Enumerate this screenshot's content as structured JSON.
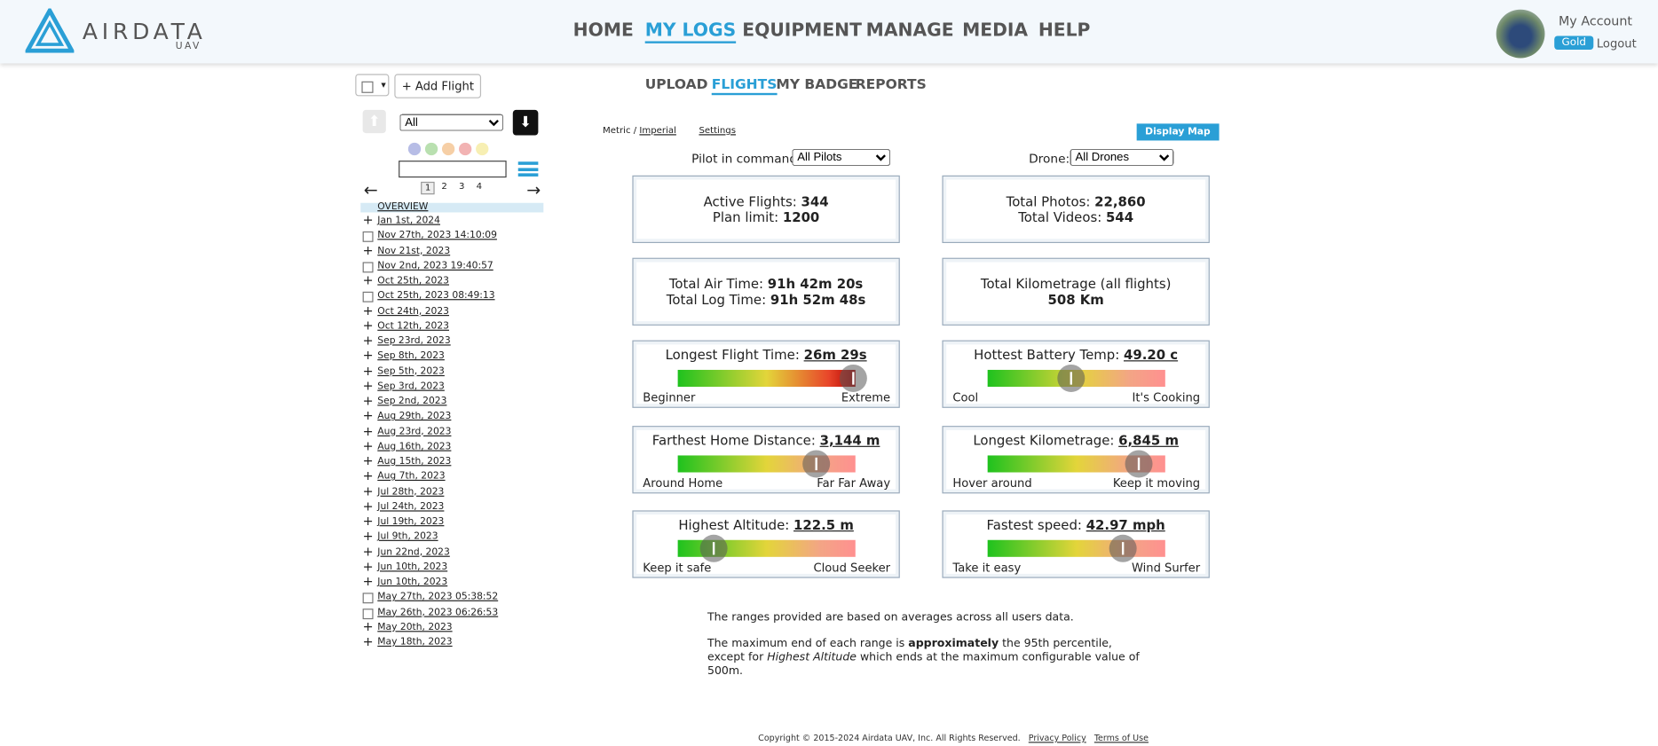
{
  "header": {
    "logo": "AIRDATA",
    "logo_sub": "UAV",
    "nav": [
      "HOME",
      "MY LOGS",
      "EQUIPMENT",
      "MANAGE",
      "MEDIA",
      "HELP"
    ],
    "account": "My Account",
    "plan": "Gold",
    "logout": "Logout"
  },
  "subnav": [
    "UPLOAD",
    "FLIGHTS",
    "MY BADGE",
    "REPORTS"
  ],
  "sidebar": {
    "add_flight": "Add Flight",
    "filter": "All",
    "pages": [
      "1",
      "2",
      "3",
      "4"
    ],
    "overview": "OVERVIEW",
    "flights": [
      {
        "label": "Jan 1st, 2024",
        "group": true
      },
      {
        "label": "Nov 27th, 2023 14:10:09",
        "group": false
      },
      {
        "label": "Nov 21st, 2023",
        "group": true
      },
      {
        "label": "Nov 2nd, 2023 19:40:57",
        "group": false
      },
      {
        "label": "Oct 25th, 2023",
        "group": true
      },
      {
        "label": "Oct 25th, 2023 08:49:13",
        "group": false
      },
      {
        "label": "Oct 24th, 2023",
        "group": true
      },
      {
        "label": "Oct 12th, 2023",
        "group": true
      },
      {
        "label": "Sep 23rd, 2023",
        "group": true
      },
      {
        "label": "Sep 8th, 2023",
        "group": true
      },
      {
        "label": "Sep 5th, 2023",
        "group": true
      },
      {
        "label": "Sep 3rd, 2023",
        "group": true
      },
      {
        "label": "Sep 2nd, 2023",
        "group": true
      },
      {
        "label": "Aug 29th, 2023",
        "group": true
      },
      {
        "label": "Aug 23rd, 2023",
        "group": true
      },
      {
        "label": "Aug 16th, 2023",
        "group": true
      },
      {
        "label": "Aug 15th, 2023",
        "group": true
      },
      {
        "label": "Aug 7th, 2023",
        "group": true
      },
      {
        "label": "Jul 28th, 2023",
        "group": true
      },
      {
        "label": "Jul 24th, 2023",
        "group": true
      },
      {
        "label": "Jul 19th, 2023",
        "group": true
      },
      {
        "label": "Jul 9th, 2023",
        "group": true
      },
      {
        "label": "Jun 22nd, 2023",
        "group": true
      },
      {
        "label": "Jun 10th, 2023",
        "group": true
      },
      {
        "label": "Jun 10th, 2023",
        "group": true
      },
      {
        "label": "May 27th, 2023 05:38:52",
        "group": false
      },
      {
        "label": "May 26th, 2023 06:26:53",
        "group": false
      },
      {
        "label": "May 20th, 2023",
        "group": true
      },
      {
        "label": "May 18th, 2023",
        "group": true
      }
    ]
  },
  "options": {
    "metric": "Metric",
    "imperial": "Imperial",
    "settings": "Settings",
    "display_map": "Display Map",
    "pilot_label": "Pilot in command:",
    "pilot_value": "All Pilots",
    "drone_label": "Drone:",
    "drone_value": "All Drones"
  },
  "stats": [
    {
      "lines": [
        {
          "label": "Active Flights:",
          "value": "344"
        },
        {
          "label": "Plan limit:",
          "value": "1200"
        }
      ]
    },
    {
      "lines": [
        {
          "label": "Total Photos:",
          "value": "22,860"
        },
        {
          "label": "Total Videos:",
          "value": "544"
        }
      ]
    },
    {
      "lines": [
        {
          "label": "Total Air Time:",
          "value": "91h 42m 20s"
        },
        {
          "label": "Total Log Time:",
          "value": "91h 52m 48s"
        }
      ]
    },
    {
      "lines": [
        {
          "label": "Total Kilometrage (all flights)",
          "value": "508 Km"
        }
      ]
    }
  ],
  "gauges": [
    {
      "label": "Longest Flight Time:",
      "value": "26m 29s",
      "low": "Beginner",
      "high": "Extreme"
    },
    {
      "label": "Hottest Battery Temp:",
      "value": "49.20 c",
      "low": "Cool",
      "high": "It's Cooking"
    },
    {
      "label": "Farthest Home Distance:",
      "value": "3,144 m",
      "low": "Around Home",
      "high": "Far Far Away"
    },
    {
      "label": "Longest Kilometrage:",
      "value": "6,845 m",
      "low": "Hover around",
      "high": "Keep it moving"
    },
    {
      "label": "Highest Altitude:",
      "value": "122.5 m",
      "low": "Keep it safe",
      "high": "Cloud Seeker"
    },
    {
      "label": "Fastest speed:",
      "value": "42.97 mph",
      "low": "Take it easy",
      "high": "Wind Surfer"
    }
  ],
  "notes": {
    "line1": "The ranges provided are based on averages across all users data.",
    "p1": "The maximum end of each range is",
    "bold": "approximately",
    "p2": "the 95th percentile, except for",
    "italic": "Highest Altitude",
    "p3": "which ends at the maximum configurable value of 500m."
  },
  "footer": {
    "copyright": "Copyright © 2015-2024 Airdata UAV, Inc. All Rights Reserved.",
    "privacy": "Privacy Policy",
    "terms": "Terms of Use"
  }
}
